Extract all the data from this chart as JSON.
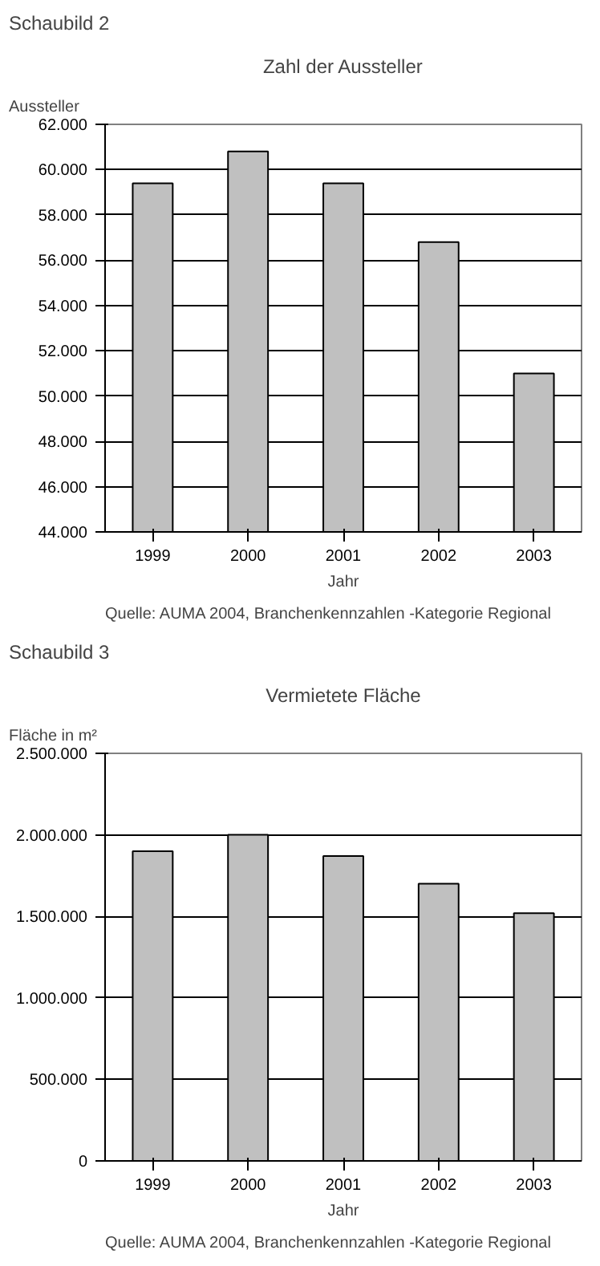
{
  "chart_data": [
    {
      "type": "bar",
      "title": "Zahl der Aussteller",
      "ylabel": "Aussteller",
      "xlabel": "Jahr",
      "categories": [
        "1999",
        "2000",
        "2001",
        "2002",
        "2003"
      ],
      "values": [
        59400,
        60800,
        59400,
        56800,
        51000
      ],
      "color": "#c0c0c0",
      "ylim": [
        44000,
        62000
      ],
      "yticks": [
        {
          "value": 44000,
          "label": "44.000"
        },
        {
          "value": 46000,
          "label": "46.000"
        },
        {
          "value": 48000,
          "label": "48.000"
        },
        {
          "value": 50000,
          "label": "50.000"
        },
        {
          "value": 52000,
          "label": "52.000"
        },
        {
          "value": 54000,
          "label": "54.000"
        },
        {
          "value": 56000,
          "label": "56.000"
        },
        {
          "value": 58000,
          "label": "58.000"
        },
        {
          "value": 60000,
          "label": "60.000"
        },
        {
          "value": 62000,
          "label": "62.000"
        }
      ],
      "grid": "y",
      "annotations": [
        "Schaubild 2",
        "Quelle: AUMA 2004, Branchenkennzahlen -Kategorie Regional"
      ]
    },
    {
      "type": "bar",
      "title": "Vermietete Fläche",
      "ylabel": "Fläche in m²",
      "xlabel": "Jahr",
      "categories": [
        "1999",
        "2000",
        "2001",
        "2002",
        "2003"
      ],
      "values": [
        1900000,
        2000000,
        1870000,
        1700000,
        1520000
      ],
      "color": "#c0c0c0",
      "ylim": [
        0,
        2500000
      ],
      "yticks": [
        0,
        {
          "value": 500000,
          "label": "500.000"
        },
        {
          "value": 1000000,
          "label": "1.000.000"
        },
        {
          "value": 1500000,
          "label": "1.500.000"
        },
        {
          "value": 2000000,
          "label": "2.000.000"
        },
        {
          "value": 2500000,
          "label": "2.500.000"
        }
      ],
      "grid": "y",
      "annotations": [
        "Schaubild 3",
        "Quelle: AUMA 2004, Branchenkennzahlen -Kategorie Regional"
      ]
    }
  ]
}
